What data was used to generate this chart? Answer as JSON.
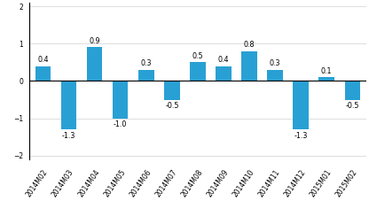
{
  "categories": [
    "2014M02",
    "2014M03",
    "2014M04",
    "2014M05",
    "2014M06",
    "2014M07",
    "2014M08",
    "2014M09",
    "2014M10",
    "2014M11",
    "2014M12",
    "2015M01",
    "2015M02"
  ],
  "values": [
    0.4,
    -1.3,
    0.9,
    -1.0,
    0.3,
    -0.5,
    0.5,
    0.4,
    0.8,
    0.3,
    -1.3,
    0.1,
    -0.5
  ],
  "bar_color": "#29a0d4",
  "ylim": [
    -2.1,
    2.1
  ],
  "yticks": [
    -2,
    -1,
    0,
    1,
    2
  ],
  "background_color": "#ffffff",
  "label_fontsize": 5.8,
  "tick_fontsize": 5.5,
  "bar_width": 0.6
}
